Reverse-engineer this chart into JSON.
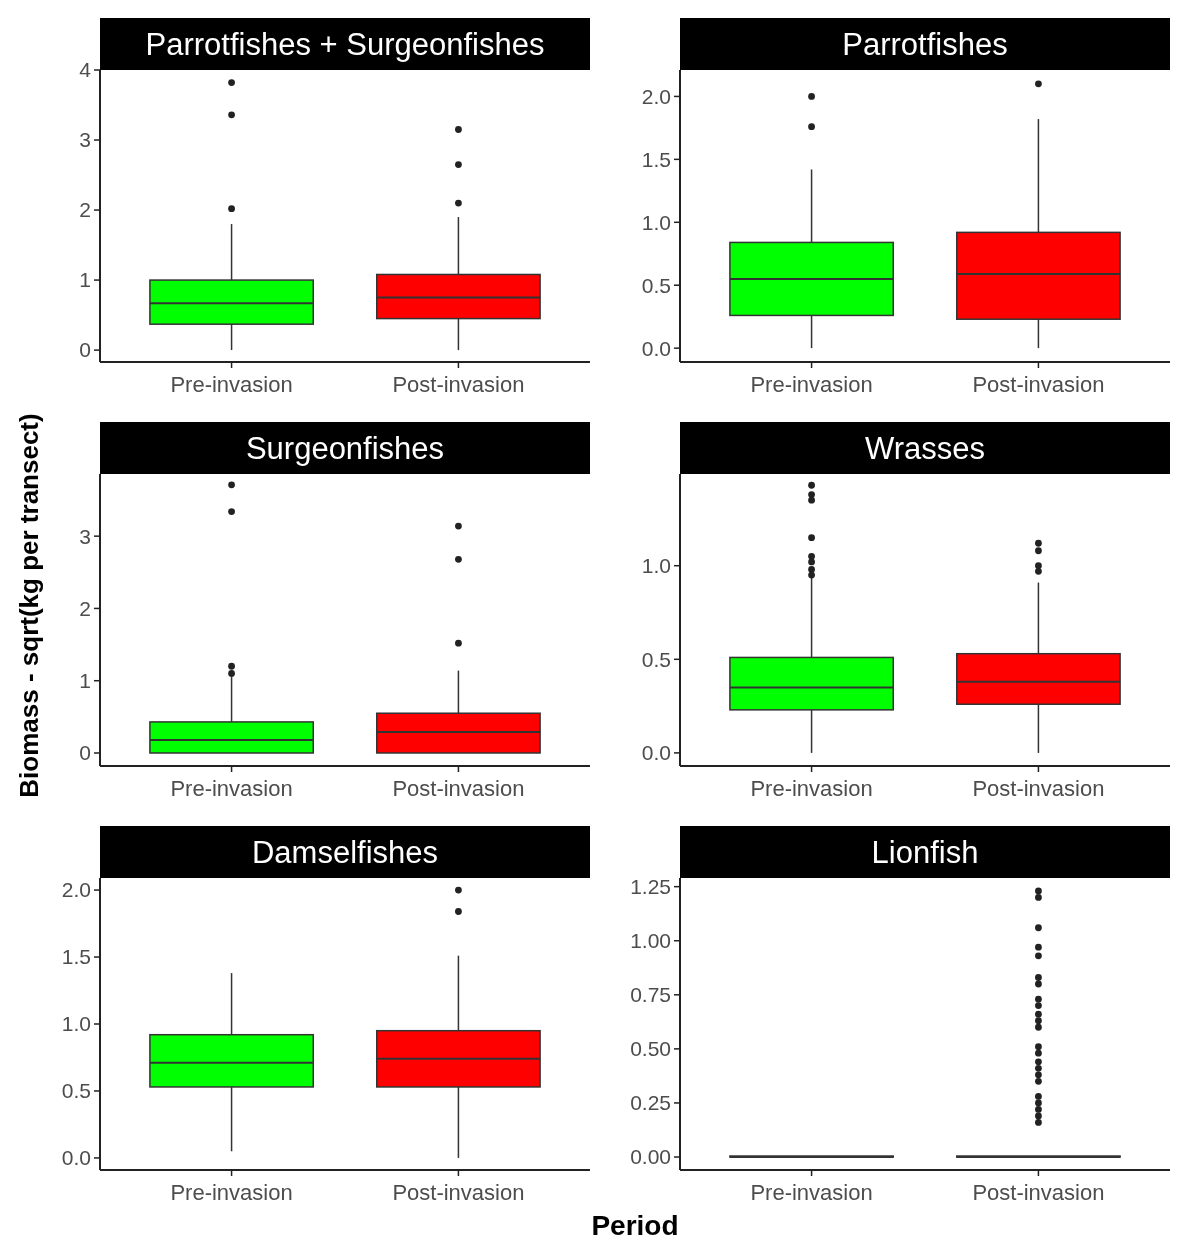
{
  "chart_data": [
    {
      "type": "box",
      "title": "Parrotfishes + Surgeonfishes",
      "categories": [
        "Pre-invasion",
        "Post-invasion"
      ],
      "colors": [
        "#00ff00",
        "#ff0000"
      ],
      "ylim": [
        -0.17,
        4.0
      ],
      "yticks": [
        0,
        1,
        2,
        3,
        4
      ],
      "boxes": [
        {
          "low": 0,
          "q1": 0.37,
          "median": 0.67,
          "q3": 1.0,
          "high": 1.8,
          "outliers": [
            2.02,
            3.36,
            3.82
          ]
        },
        {
          "low": 0,
          "q1": 0.45,
          "median": 0.75,
          "q3": 1.08,
          "high": 1.9,
          "outliers": [
            2.1,
            2.65,
            3.15
          ]
        }
      ]
    },
    {
      "type": "box",
      "title": "Parrotfishes",
      "categories": [
        "Pre-invasion",
        "Post-invasion"
      ],
      "colors": [
        "#00ff00",
        "#ff0000"
      ],
      "ylim": [
        -0.11,
        2.21
      ],
      "yticks": [
        {
          "value": 0,
          "label": "0.0"
        },
        {
          "value": 0.5,
          "label": "0.5"
        },
        {
          "value": 1,
          "label": "1.0"
        },
        {
          "value": 1.5,
          "label": "1.5"
        },
        {
          "value": 2,
          "label": "2.0"
        }
      ],
      "boxes": [
        {
          "low": 0,
          "q1": 0.26,
          "median": 0.55,
          "q3": 0.84,
          "high": 1.42,
          "outliers": [
            1.76,
            2.0
          ]
        },
        {
          "low": 0,
          "q1": 0.23,
          "median": 0.59,
          "q3": 0.92,
          "high": 1.82,
          "outliers": [
            2.1
          ]
        }
      ]
    },
    {
      "type": "box",
      "title": "Surgeonfishes",
      "ylabel": "Biomass - sqrt(kg per transect)",
      "categories": [
        "Pre-invasion",
        "Post-invasion"
      ],
      "colors": [
        "#00ff00",
        "#ff0000"
      ],
      "ylim": [
        -0.18,
        3.86
      ],
      "yticks": [
        0,
        1,
        2,
        3
      ],
      "boxes": [
        {
          "low": 0,
          "q1": 0,
          "median": 0.18,
          "q3": 0.43,
          "high": 1.05,
          "outliers": [
            1.1,
            1.2,
            3.34,
            3.71
          ]
        },
        {
          "low": 0,
          "q1": 0,
          "median": 0.29,
          "q3": 0.55,
          "high": 1.14,
          "outliers": [
            1.52,
            2.68,
            3.14
          ]
        }
      ]
    },
    {
      "type": "box",
      "title": "Wrasses",
      "categories": [
        "Pre-invasion",
        "Post-invasion"
      ],
      "colors": [
        "#00ff00",
        "#ff0000"
      ],
      "ylim": [
        -0.07,
        1.49
      ],
      "yticks": [
        {
          "value": 0,
          "label": "0.0"
        },
        {
          "value": 0.5,
          "label": "0.5"
        },
        {
          "value": 1,
          "label": "1.0"
        }
      ],
      "boxes": [
        {
          "low": 0,
          "q1": 0.23,
          "median": 0.35,
          "q3": 0.51,
          "high": 0.94,
          "outliers": [
            0.95,
            0.98,
            1.02,
            1.05,
            1.15,
            1.35,
            1.38,
            1.43
          ]
        },
        {
          "low": 0,
          "q1": 0.26,
          "median": 0.38,
          "q3": 0.53,
          "high": 0.91,
          "outliers": [
            0.97,
            1.0,
            1.08,
            1.12
          ]
        }
      ]
    },
    {
      "type": "box",
      "title": "Damselfishes",
      "xlabel": "Period",
      "categories": [
        "Pre-invasion",
        "Post-invasion"
      ],
      "colors": [
        "#00ff00",
        "#ff0000"
      ],
      "ylim": [
        -0.09,
        2.09
      ],
      "yticks": [
        {
          "value": 0,
          "label": "0.0"
        },
        {
          "value": 0.5,
          "label": "0.5"
        },
        {
          "value": 1,
          "label": "1.0"
        },
        {
          "value": 1.5,
          "label": "1.5"
        },
        {
          "value": 2,
          "label": "2.0"
        }
      ],
      "boxes": [
        {
          "low": 0.05,
          "q1": 0.53,
          "median": 0.71,
          "q3": 0.92,
          "high": 1.38
        },
        {
          "low": 0,
          "q1": 0.53,
          "median": 0.74,
          "q3": 0.95,
          "high": 1.51,
          "outliers": [
            1.84,
            2.0
          ]
        }
      ]
    },
    {
      "type": "box",
      "title": "Lionfish",
      "categories": [
        "Pre-invasion",
        "Post-invasion"
      ],
      "colors": [
        "#00ff00",
        "#ff0000"
      ],
      "ylim": [
        -0.06,
        1.29
      ],
      "yticks": [
        {
          "value": 0,
          "label": "0.00"
        },
        {
          "value": 0.25,
          "label": "0.25"
        },
        {
          "value": 0.5,
          "label": "0.50"
        },
        {
          "value": 0.75,
          "label": "0.75"
        },
        {
          "value": 1,
          "label": "1.00"
        },
        {
          "value": 1.25,
          "label": "1.25"
        }
      ],
      "boxes": [
        {
          "low": 0,
          "q1": 0,
          "median": 0,
          "q3": 0,
          "high": 0
        },
        {
          "low": 0,
          "q1": 0,
          "median": 0,
          "q3": 0,
          "high": 0,
          "outliers": [
            0.16,
            0.19,
            0.22,
            0.25,
            0.28,
            0.35,
            0.38,
            0.41,
            0.44,
            0.48,
            0.51,
            0.6,
            0.63,
            0.66,
            0.7,
            0.73,
            0.8,
            0.83,
            0.93,
            0.97,
            1.06,
            1.2,
            1.23
          ]
        }
      ]
    }
  ]
}
